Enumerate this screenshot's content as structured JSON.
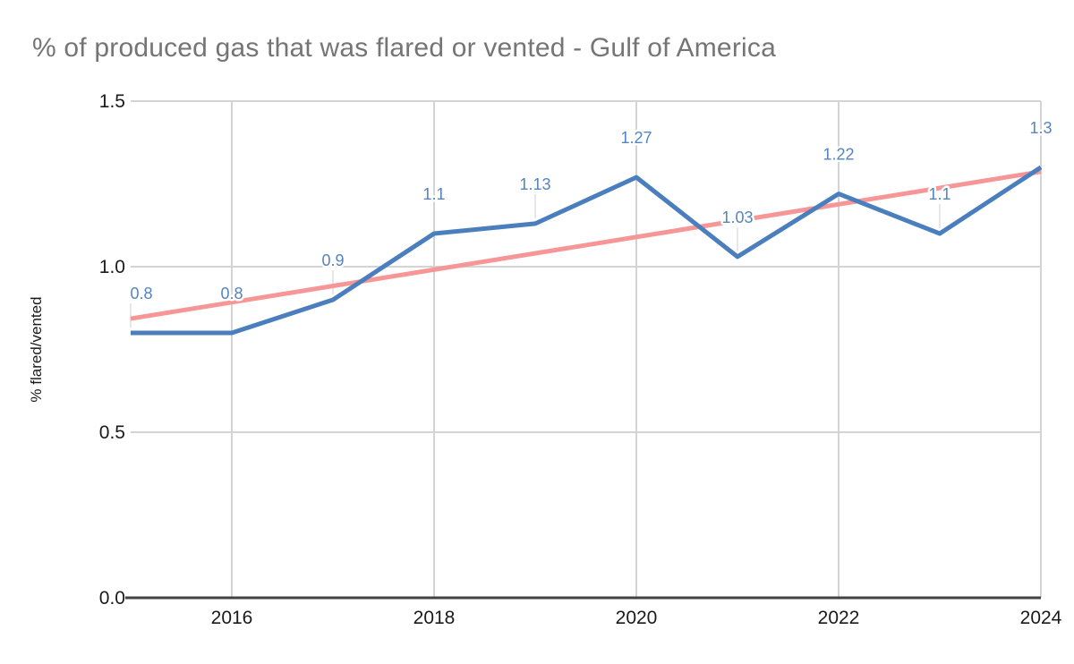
{
  "chart_data": {
    "type": "line",
    "title": "% of produced gas that was flared or vented - Gulf of America",
    "ylabel": "% flared/vented",
    "xlabel": "",
    "x": [
      2015,
      2016,
      2017,
      2018,
      2019,
      2020,
      2021,
      2022,
      2023,
      2024
    ],
    "series": [
      {
        "name": "% flared/vented",
        "values": [
          0.8,
          0.8,
          0.9,
          1.1,
          1.13,
          1.27,
          1.03,
          1.22,
          1.1,
          1.3
        ],
        "labels": [
          "0.8",
          "0.8",
          "0.9",
          "1.1",
          "1.13",
          "1.27",
          "1.03",
          "1.22",
          "1.1",
          "1.3"
        ]
      }
    ],
    "trendline": {
      "start_x": 2015,
      "start_value": 0.843,
      "end_x": 2024,
      "end_value": 1.287
    },
    "xlim": [
      2015,
      2024
    ],
    "ylim": [
      0,
      1.5
    ],
    "x_ticks": [
      "2016",
      "2018",
      "2020",
      "2022",
      "2024"
    ],
    "x_tick_values": [
      2016,
      2018,
      2020,
      2022,
      2024
    ],
    "y_ticks": [
      "0.0",
      "0.5",
      "1.0",
      "1.5"
    ],
    "y_tick_values": [
      0,
      0.5,
      1,
      1.5
    ],
    "grid": true,
    "legend_position": "none",
    "colors": {
      "series_line": "#4a7ebd",
      "trendline": "#f79696",
      "data_labels": "#5484c1",
      "title": "#757575",
      "axis_text": "#1a1a1a",
      "gridline": "#d4d4d4",
      "axis_line": "#424242",
      "label_stem": "#e7e7e7",
      "background": "#ffffff"
    }
  }
}
